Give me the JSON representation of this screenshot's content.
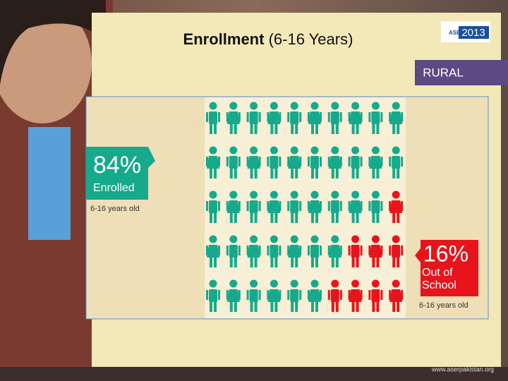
{
  "chart_data": {
    "type": "pictograph",
    "title": "Enrollment",
    "subtitle": "(6-16 Years)",
    "tag": "RURAL",
    "logo": {
      "name": "ASER",
      "year": "2013"
    },
    "footer": "www.aserpakistan.org",
    "series": [
      {
        "name": "Enrolled",
        "color": "#17a98c",
        "values": [
          84
        ],
        "value_labels": [
          "84%"
        ],
        "note": "6-16 years old"
      },
      {
        "name": "Out of School",
        "color": "#e8141b",
        "values": [
          16
        ],
        "value_labels": [
          "16%"
        ],
        "note": "6-16 years old"
      }
    ]
  }
}
